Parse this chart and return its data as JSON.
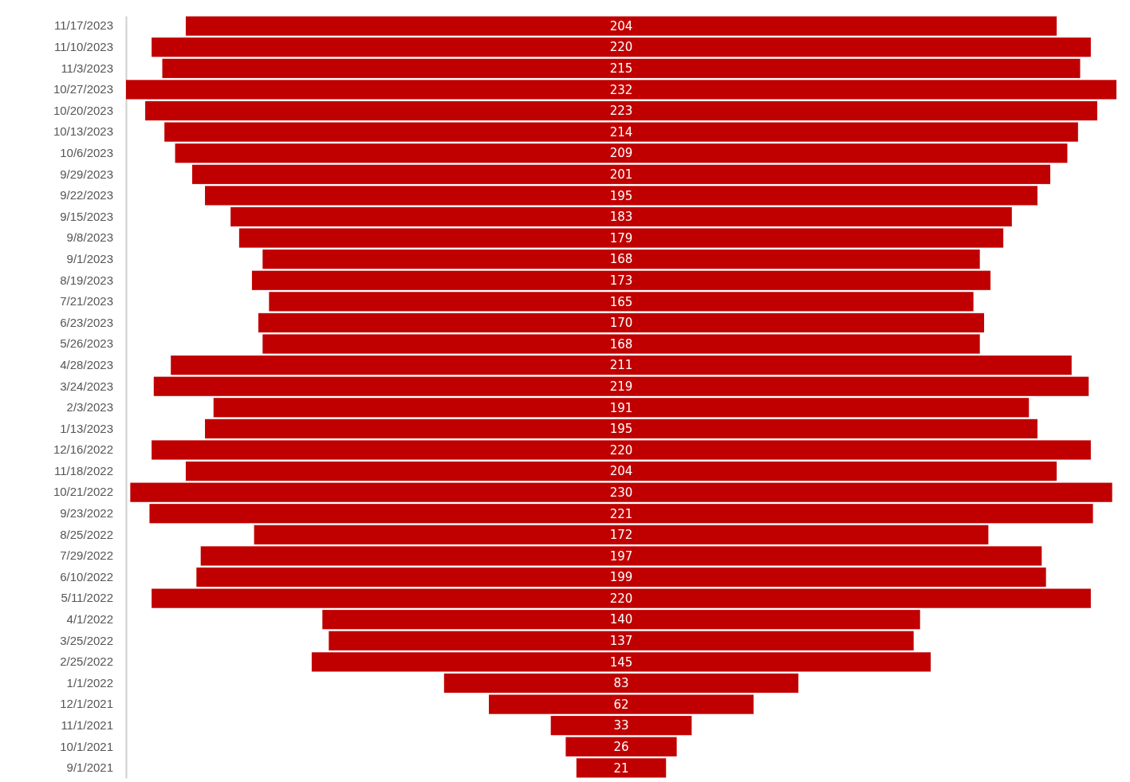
{
  "chart_data": {
    "type": "other",
    "data_labels": true,
    "color": "#c00000",
    "categories": [
      "11/17/2023",
      "11/10/2023",
      "11/3/2023",
      "10/27/2023",
      "10/20/2023",
      "10/13/2023",
      "10/6/2023",
      "9/29/2023",
      "9/22/2023",
      "9/15/2023",
      "9/8/2023",
      "9/1/2023",
      "8/19/2023",
      "7/21/2023",
      "6/23/2023",
      "5/26/2023",
      "4/28/2023",
      "3/24/2023",
      "2/3/2023",
      "1/13/2023",
      "12/16/2022",
      "11/18/2022",
      "10/21/2022",
      "9/23/2022",
      "8/25/2022",
      "7/29/2022",
      "6/10/2022",
      "5/11/2022",
      "4/1/2022",
      "3/25/2022",
      "2/25/2022",
      "1/1/2022",
      "12/1/2021",
      "11/1/2021",
      "10/1/2021",
      "9/1/2021"
    ],
    "values": [
      204,
      220,
      215,
      232,
      223,
      214,
      209,
      201,
      195,
      183,
      179,
      168,
      173,
      165,
      170,
      168,
      211,
      219,
      191,
      195,
      220,
      204,
      230,
      221,
      172,
      197,
      199,
      220,
      140,
      137,
      145,
      83,
      62,
      33,
      26,
      21
    ]
  }
}
